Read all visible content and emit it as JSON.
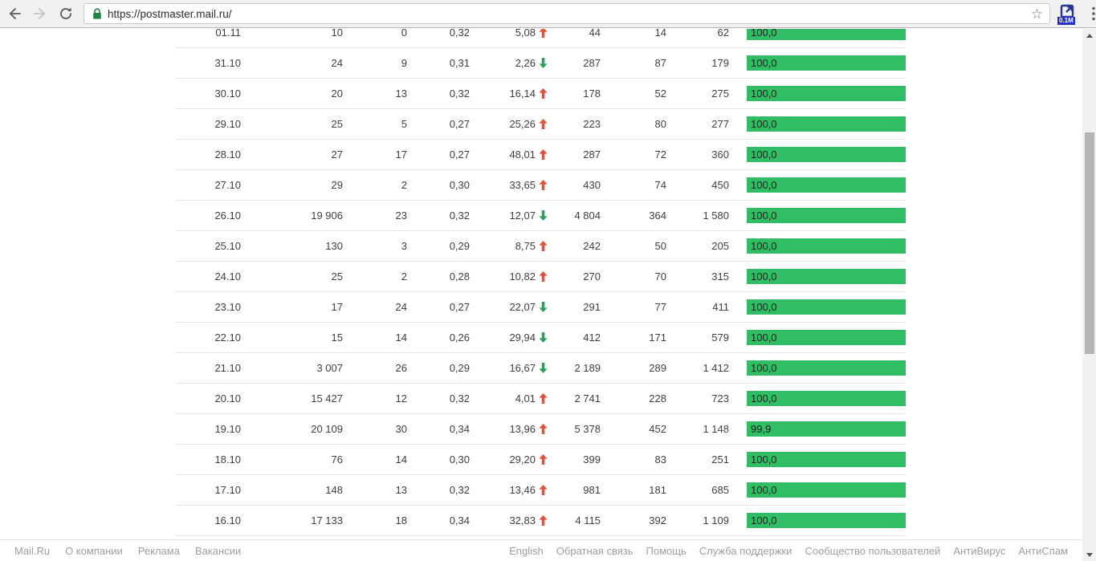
{
  "browser": {
    "url": "https://postmaster.mail.ru/",
    "extension_badge": "0.1M"
  },
  "table": {
    "rows": [
      {
        "date": "01.11",
        "c2": "10",
        "c3": "0",
        "c4": "0,32",
        "trend_value": "5,08",
        "trend_dir": "up",
        "c6": "44",
        "c7": "14",
        "c8": "62",
        "bar_label": "100,0",
        "bar_pct": 100
      },
      {
        "date": "31.10",
        "c2": "24",
        "c3": "9",
        "c4": "0,31",
        "trend_value": "2,26",
        "trend_dir": "down",
        "c6": "287",
        "c7": "87",
        "c8": "179",
        "bar_label": "100,0",
        "bar_pct": 100
      },
      {
        "date": "30.10",
        "c2": "20",
        "c3": "13",
        "c4": "0,32",
        "trend_value": "16,14",
        "trend_dir": "up",
        "c6": "178",
        "c7": "52",
        "c8": "275",
        "bar_label": "100,0",
        "bar_pct": 100
      },
      {
        "date": "29.10",
        "c2": "25",
        "c3": "5",
        "c4": "0,27",
        "trend_value": "25,26",
        "trend_dir": "up",
        "c6": "223",
        "c7": "80",
        "c8": "277",
        "bar_label": "100,0",
        "bar_pct": 100
      },
      {
        "date": "28.10",
        "c2": "27",
        "c3": "17",
        "c4": "0,27",
        "trend_value": "48,01",
        "trend_dir": "up",
        "c6": "287",
        "c7": "72",
        "c8": "360",
        "bar_label": "100,0",
        "bar_pct": 100
      },
      {
        "date": "27.10",
        "c2": "29",
        "c3": "2",
        "c4": "0,30",
        "trend_value": "33,65",
        "trend_dir": "up",
        "c6": "430",
        "c7": "74",
        "c8": "450",
        "bar_label": "100,0",
        "bar_pct": 100
      },
      {
        "date": "26.10",
        "c2": "19 906",
        "c3": "23",
        "c4": "0,32",
        "trend_value": "12,07",
        "trend_dir": "down",
        "c6": "4 804",
        "c7": "364",
        "c8": "1 580",
        "bar_label": "100,0",
        "bar_pct": 100
      },
      {
        "date": "25.10",
        "c2": "130",
        "c3": "3",
        "c4": "0,29",
        "trend_value": "8,75",
        "trend_dir": "up",
        "c6": "242",
        "c7": "50",
        "c8": "205",
        "bar_label": "100,0",
        "bar_pct": 100
      },
      {
        "date": "24.10",
        "c2": "25",
        "c3": "2",
        "c4": "0,28",
        "trend_value": "10,82",
        "trend_dir": "up",
        "c6": "270",
        "c7": "70",
        "c8": "315",
        "bar_label": "100,0",
        "bar_pct": 100
      },
      {
        "date": "23.10",
        "c2": "17",
        "c3": "24",
        "c4": "0,27",
        "trend_value": "22,07",
        "trend_dir": "down",
        "c6": "291",
        "c7": "77",
        "c8": "411",
        "bar_label": "100,0",
        "bar_pct": 100
      },
      {
        "date": "22.10",
        "c2": "15",
        "c3": "14",
        "c4": "0,26",
        "trend_value": "29,94",
        "trend_dir": "down",
        "c6": "412",
        "c7": "171",
        "c8": "579",
        "bar_label": "100,0",
        "bar_pct": 100
      },
      {
        "date": "21.10",
        "c2": "3 007",
        "c3": "26",
        "c4": "0,29",
        "trend_value": "16,67",
        "trend_dir": "down",
        "c6": "2 189",
        "c7": "289",
        "c8": "1 412",
        "bar_label": "100,0",
        "bar_pct": 100
      },
      {
        "date": "20.10",
        "c2": "15 427",
        "c3": "12",
        "c4": "0,32",
        "trend_value": "4,01",
        "trend_dir": "up",
        "c6": "2 741",
        "c7": "228",
        "c8": "723",
        "bar_label": "100,0",
        "bar_pct": 100
      },
      {
        "date": "19.10",
        "c2": "20 109",
        "c3": "30",
        "c4": "0,34",
        "trend_value": "13,96",
        "trend_dir": "up",
        "c6": "5 378",
        "c7": "452",
        "c8": "1 148",
        "bar_label": "99,9",
        "bar_pct": 99.9
      },
      {
        "date": "18.10",
        "c2": "76",
        "c3": "14",
        "c4": "0,30",
        "trend_value": "29,20",
        "trend_dir": "up",
        "c6": "399",
        "c7": "83",
        "c8": "251",
        "bar_label": "100,0",
        "bar_pct": 100
      },
      {
        "date": "17.10",
        "c2": "148",
        "c3": "13",
        "c4": "0,32",
        "trend_value": "13,46",
        "trend_dir": "up",
        "c6": "981",
        "c7": "181",
        "c8": "685",
        "bar_label": "100,0",
        "bar_pct": 100
      },
      {
        "date": "16.10",
        "c2": "17 133",
        "c3": "18",
        "c4": "0,34",
        "trend_value": "32,83",
        "trend_dir": "up",
        "c6": "4 115",
        "c7": "392",
        "c8": "1 109",
        "bar_label": "100,0",
        "bar_pct": 100
      }
    ]
  },
  "footer": {
    "left_links": [
      "Mail.Ru",
      "О компании",
      "Реклама",
      "Вакансии"
    ],
    "right_links": [
      "English",
      "Обратная связь",
      "Помощь",
      "Служба поддержки",
      "Сообщество пользователей",
      "АнтиВирус",
      "АнтиСпам"
    ]
  },
  "colors": {
    "bar_green": "#2fbe64",
    "trend_up": "#e0523c",
    "trend_down": "#2ba05c"
  }
}
